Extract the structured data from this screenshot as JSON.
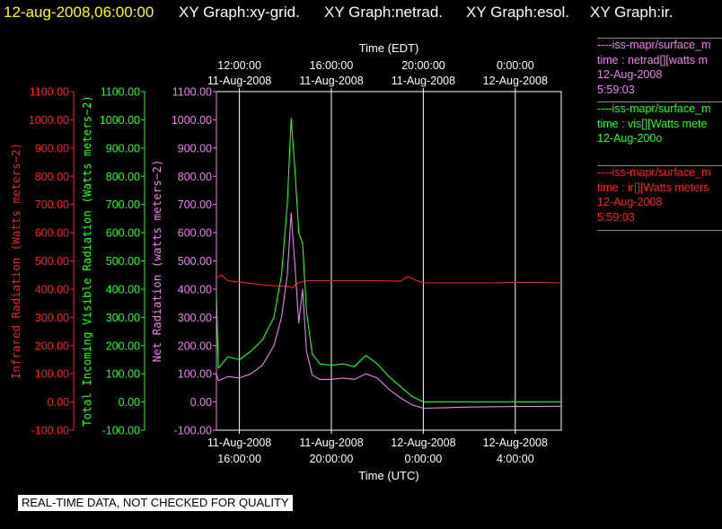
{
  "header": {
    "timestamp": "12-aug-2008,06:00:00",
    "titles": [
      "XY Graph:xy-grid.",
      "XY Graph:netrad.",
      "XY Graph:esol.",
      "XY Graph:ir."
    ]
  },
  "colors": {
    "ir": "#ff2020",
    "vis": "#20ff20",
    "net": "#ee82ee",
    "axis": "#ffffff",
    "timestamp": "#ffff00"
  },
  "legend": [
    {
      "lines": [
        "----iss-mapr/surface_m",
        "time : netrad[][watts m",
        "12-Aug-2008",
        "5:59:03"
      ],
      "color": "#ee82ee"
    },
    {
      "lines": [
        "----iss-mapr/surface_m",
        "time : vis[][Watts mete",
        "12-Aug-200o",
        ""
      ],
      "color": "#20ff20"
    },
    {
      "lines": [
        "----iss-mapr/surface_m",
        "time : ir[][Watts meters",
        "12-Aug-2008",
        "5:59:03"
      ],
      "color": "#ff2020"
    }
  ],
  "disclaimer": "REAL-TIME DATA, NOT CHECKED FOR QUALITY",
  "chart_data": {
    "type": "line",
    "x_top_label": "Time (EDT)",
    "x_bottom_label": "Time (UTC)",
    "x_range": [
      "11-Aug-2008 15:00",
      "12-Aug-2008 06:00"
    ],
    "x_top_ticks": [
      {
        "t": "11-Aug-2008 16:00",
        "label": [
          "12:00:00",
          "11-Aug-2008"
        ]
      },
      {
        "t": "11-Aug-2008 20:00",
        "label": [
          "16:00:00",
          "11-Aug-2008"
        ]
      },
      {
        "t": "12-Aug-2008 00:00",
        "label": [
          "20:00:00",
          "11-Aug-2008"
        ]
      },
      {
        "t": "12-Aug-2008 04:00",
        "label": [
          "0:00:00",
          "12-Aug-2008"
        ]
      }
    ],
    "x_bottom_ticks": [
      {
        "t": "11-Aug-2008 16:00",
        "label": [
          "11-Aug-2008",
          "16:00:00"
        ]
      },
      {
        "t": "11-Aug-2008 20:00",
        "label": [
          "11-Aug-2008",
          "20:00:00"
        ]
      },
      {
        "t": "12-Aug-2008 00:00",
        "label": [
          "12-Aug-2008",
          "0:00:00"
        ]
      },
      {
        "t": "12-Aug-2008 04:00",
        "label": [
          "12-Aug-2008",
          "4:00:00"
        ]
      }
    ],
    "y_ticks": [
      "1100.00",
      "1000.00",
      "900.00",
      "800.00",
      "700.00",
      "600.00",
      "500.00",
      "400.00",
      "300.00",
      "200.00",
      "100.00",
      "0.00",
      "-100.00"
    ],
    "ylim": [
      -100,
      1100
    ],
    "grid": "vertical lines at each x tick",
    "series": [
      {
        "name": "Infrared Radiation (Watts meters-2)",
        "key": "ir",
        "x": [
          "11-Aug-2008 15:00",
          "11-Aug-2008 15:12",
          "11-Aug-2008 15:30",
          "11-Aug-2008 16:00",
          "11-Aug-2008 16:30",
          "11-Aug-2008 17:00",
          "11-Aug-2008 17:30",
          "11-Aug-2008 18:00",
          "11-Aug-2008 18:20",
          "11-Aug-2008 18:30",
          "11-Aug-2008 18:40",
          "11-Aug-2008 18:50",
          "11-Aug-2008 19:00",
          "11-Aug-2008 19:30",
          "11-Aug-2008 20:00",
          "11-Aug-2008 21:00",
          "11-Aug-2008 22:00",
          "11-Aug-2008 23:00",
          "11-Aug-2008 23:20",
          "11-Aug-2008 23:40",
          "12-Aug-2008 00:00",
          "12-Aug-2008 01:00",
          "12-Aug-2008 02:00",
          "12-Aug-2008 03:00",
          "12-Aug-2008 04:00",
          "12-Aug-2008 05:00",
          "12-Aug-2008 06:00"
        ],
        "y": [
          440,
          450,
          430,
          425,
          420,
          415,
          412,
          410,
          405,
          420,
          425,
          428,
          430,
          430,
          430,
          430,
          430,
          428,
          445,
          432,
          422,
          422,
          422,
          422,
          424,
          424,
          422
        ]
      },
      {
        "name": "Total Incoming Visible Radiation (Watts meters-2)",
        "key": "vis",
        "x": [
          "11-Aug-2008 15:00",
          "11-Aug-2008 15:05",
          "11-Aug-2008 15:30",
          "11-Aug-2008 16:00",
          "11-Aug-2008 16:30",
          "11-Aug-2008 17:00",
          "11-Aug-2008 17:30",
          "11-Aug-2008 17:50",
          "11-Aug-2008 18:05",
          "11-Aug-2008 18:15",
          "11-Aug-2008 18:25",
          "11-Aug-2008 18:35",
          "11-Aug-2008 18:45",
          "11-Aug-2008 18:55",
          "11-Aug-2008 19:10",
          "11-Aug-2008 19:30",
          "11-Aug-2008 20:00",
          "11-Aug-2008 20:30",
          "11-Aug-2008 21:00",
          "11-Aug-2008 21:30",
          "11-Aug-2008 22:00",
          "11-Aug-2008 22:30",
          "11-Aug-2008 23:00",
          "11-Aug-2008 23:30",
          "12-Aug-2008 00:00",
          "12-Aug-2008 01:00",
          "12-Aug-2008 02:00",
          "12-Aug-2008 03:00",
          "12-Aug-2008 04:00",
          "12-Aug-2008 05:00",
          "12-Aug-2008 06:00"
        ],
        "y": [
          380,
          120,
          160,
          150,
          180,
          220,
          300,
          450,
          700,
          1005,
          820,
          600,
          560,
          320,
          170,
          135,
          130,
          135,
          125,
          165,
          135,
          90,
          55,
          20,
          0,
          0,
          0,
          0,
          0,
          0,
          0
        ]
      },
      {
        "name": "Net Radiation (watts meters-2)",
        "key": "net",
        "x": [
          "11-Aug-2008 15:00",
          "11-Aug-2008 15:05",
          "11-Aug-2008 15:30",
          "11-Aug-2008 16:00",
          "11-Aug-2008 16:30",
          "11-Aug-2008 17:00",
          "11-Aug-2008 17:30",
          "11-Aug-2008 17:50",
          "11-Aug-2008 18:05",
          "11-Aug-2008 18:15",
          "11-Aug-2008 18:25",
          "11-Aug-2008 18:35",
          "11-Aug-2008 18:45",
          "11-Aug-2008 18:55",
          "11-Aug-2008 19:10",
          "11-Aug-2008 19:30",
          "11-Aug-2008 20:00",
          "11-Aug-2008 20:30",
          "11-Aug-2008 21:00",
          "11-Aug-2008 21:30",
          "11-Aug-2008 22:00",
          "11-Aug-2008 22:30",
          "11-Aug-2008 23:00",
          "11-Aug-2008 23:30",
          "12-Aug-2008 00:00",
          "12-Aug-2008 01:00",
          "12-Aug-2008 02:00",
          "12-Aug-2008 03:00",
          "12-Aug-2008 04:00",
          "12-Aug-2008 05:00",
          "12-Aug-2008 06:00"
        ],
        "y": [
          100,
          75,
          90,
          85,
          100,
          130,
          200,
          300,
          450,
          670,
          480,
          280,
          400,
          180,
          95,
          80,
          80,
          85,
          80,
          100,
          85,
          45,
          15,
          -10,
          -22,
          -20,
          -18,
          -17,
          -16,
          -16,
          -15
        ]
      }
    ],
    "y_axes": [
      {
        "label": "Infrared Radiation (Watts meters−2)",
        "color": "#ff2020"
      },
      {
        "label": "Total Incoming Visible Radiation (Watts meters−2)",
        "color": "#20ff20"
      },
      {
        "label": "Net Radiation (watts meters−2)",
        "color": "#ee82ee"
      }
    ]
  }
}
